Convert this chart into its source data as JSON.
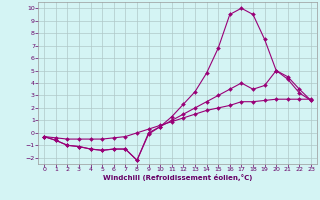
{
  "xlabel": "Windchill (Refroidissement éolien,°C)",
  "background_color": "#d4f4f4",
  "grid_color": "#b0c8c8",
  "line_color": "#990077",
  "xlim": [
    -0.5,
    23.5
  ],
  "ylim": [
    -2.5,
    10.5
  ],
  "xticks": [
    0,
    1,
    2,
    3,
    4,
    5,
    6,
    7,
    8,
    9,
    10,
    11,
    12,
    13,
    14,
    15,
    16,
    17,
    18,
    19,
    20,
    21,
    22,
    23
  ],
  "yticks": [
    -2,
    -1,
    0,
    1,
    2,
    3,
    4,
    5,
    6,
    7,
    8,
    9,
    10
  ],
  "line1_x": [
    0,
    1,
    2,
    3,
    4,
    5,
    6,
    7,
    8,
    9,
    10,
    11,
    12,
    13,
    14,
    15,
    16,
    17,
    18,
    19,
    20,
    21,
    22,
    23
  ],
  "line1_y": [
    -0.3,
    -0.6,
    -1.0,
    -1.1,
    -1.3,
    -1.4,
    -1.3,
    -1.3,
    -2.2,
    -0.1,
    0.5,
    1.3,
    2.3,
    3.3,
    4.8,
    6.8,
    9.5,
    10.0,
    9.5,
    7.5,
    5.0,
    4.3,
    3.2,
    2.6
  ],
  "line2_x": [
    0,
    1,
    2,
    3,
    4,
    5,
    6,
    7,
    8,
    9,
    10,
    11,
    12,
    13,
    14,
    15,
    16,
    17,
    18,
    19,
    20,
    21,
    22,
    23
  ],
  "line2_y": [
    -0.3,
    -0.6,
    -1.0,
    -1.1,
    -1.3,
    -1.4,
    -1.3,
    -1.3,
    -2.2,
    0.0,
    0.5,
    1.0,
    1.5,
    2.0,
    2.5,
    3.0,
    3.5,
    4.0,
    3.5,
    3.8,
    5.0,
    4.5,
    3.5,
    2.6
  ],
  "line3_x": [
    0,
    1,
    2,
    3,
    4,
    5,
    6,
    7,
    8,
    9,
    10,
    11,
    12,
    13,
    14,
    15,
    16,
    17,
    18,
    19,
    20,
    21,
    22,
    23
  ],
  "line3_y": [
    -0.3,
    -0.4,
    -0.5,
    -0.5,
    -0.5,
    -0.5,
    -0.4,
    -0.3,
    0.0,
    0.3,
    0.6,
    0.9,
    1.2,
    1.5,
    1.8,
    2.0,
    2.2,
    2.5,
    2.5,
    2.6,
    2.7,
    2.7,
    2.7,
    2.7
  ],
  "marker": "D",
  "markersize": 2.0,
  "linewidth": 0.8
}
